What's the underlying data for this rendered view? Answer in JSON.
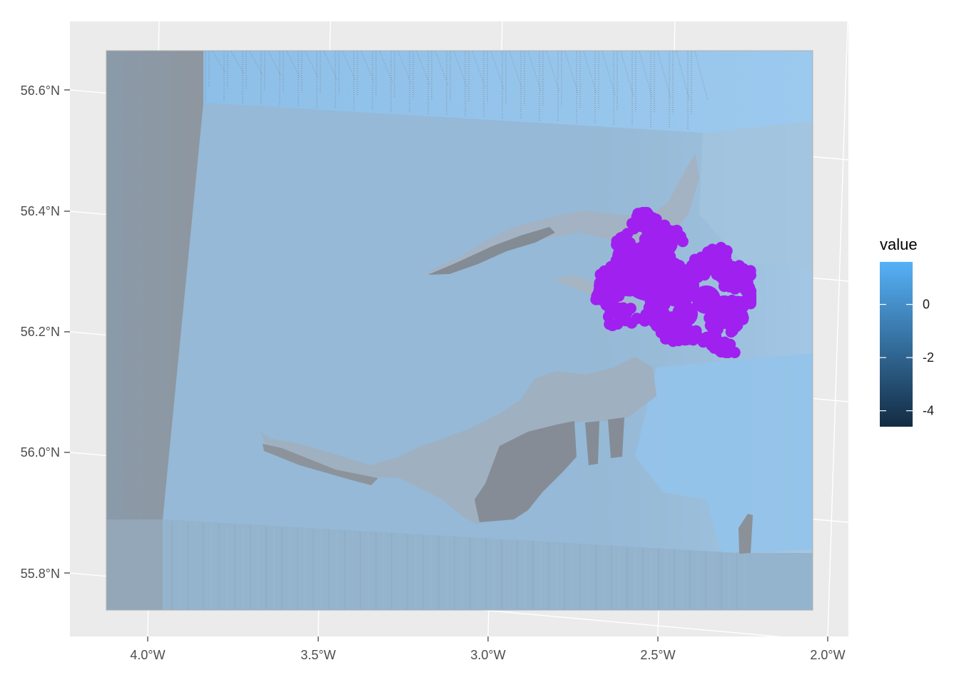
{
  "map": {
    "x_axis": {
      "ticks": [
        "4.0°W",
        "3.5°W",
        "3.0°W",
        "2.5°W",
        "2.0°W"
      ],
      "values": [
        -4.0,
        -3.5,
        -3.0,
        -2.5,
        -2.0
      ]
    },
    "y_axis": {
      "ticks": [
        "56.6°N",
        "56.4°N",
        "56.2°N",
        "56.0°N",
        "55.8°N"
      ],
      "values": [
        56.6,
        56.4,
        56.2,
        56.0,
        55.8
      ]
    },
    "legend": {
      "title": "value",
      "labels": [
        "0",
        "-2",
        "-4"
      ],
      "values": [
        0,
        -2,
        -4
      ],
      "range": [
        -4.6,
        1.6
      ],
      "color_low": "#132b43",
      "color_high": "#56b1f7"
    },
    "colors": {
      "panel_bg": "#ebebeb",
      "grid": "#ffffff",
      "raster_base": "#95b9d6",
      "raster_light": "#8fc4ee",
      "masked_gray": "#8a919a",
      "points": "#a020f0"
    }
  }
}
